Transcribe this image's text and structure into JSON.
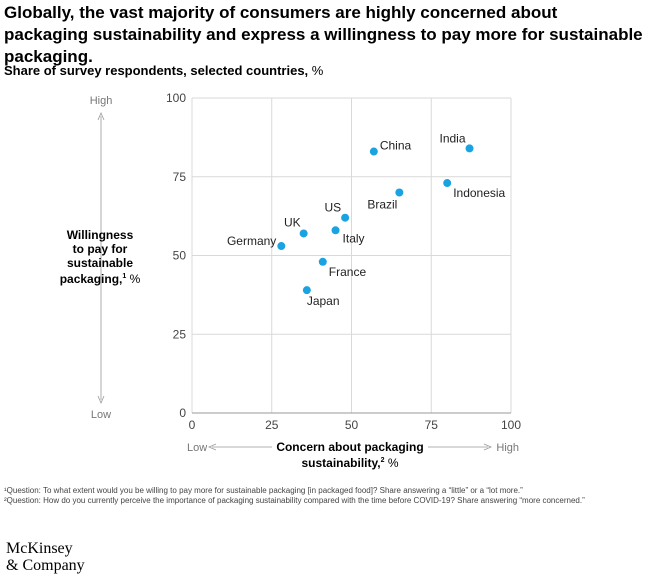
{
  "title": "Globally, the vast majority of consumers are highly concerned about packaging sustainability and express a willingness to pay more for sustainable packaging.",
  "subtitle": "Share of survey respondents, selected countries,",
  "subtitle_unit": "%",
  "colors": {
    "point": "#1aa3e0",
    "grid": "#d9d9d9",
    "axis_end": "#999999"
  },
  "chart_data": {
    "type": "scatter",
    "title": "Share of survey respondents, selected countries, %",
    "xlabel": "Concern about packaging sustainability, %",
    "ylabel": "Willingness to pay for sustainable packaging, %",
    "xlim": [
      0,
      100
    ],
    "ylim": [
      0,
      100
    ],
    "xticks": [
      "0",
      "25",
      "50",
      "75",
      "100"
    ],
    "yticks": [
      "0",
      "25",
      "50",
      "75",
      "100"
    ],
    "grid": true,
    "x_end_labels": {
      "low": "Low",
      "high": "High"
    },
    "y_end_labels": {
      "low": "Low",
      "high": "High"
    },
    "points": [
      {
        "label": "China",
        "x": 57,
        "y": 83
      },
      {
        "label": "India",
        "x": 87,
        "y": 84
      },
      {
        "label": "Indonesia",
        "x": 80,
        "y": 73
      },
      {
        "label": "Brazil",
        "x": 65,
        "y": 70
      },
      {
        "label": "US",
        "x": 48,
        "y": 62
      },
      {
        "label": "UK",
        "x": 35,
        "y": 57
      },
      {
        "label": "Italy",
        "x": 45,
        "y": 58
      },
      {
        "label": "Germany",
        "x": 28,
        "y": 53
      },
      {
        "label": "France",
        "x": 41,
        "y": 48
      },
      {
        "label": "Japan",
        "x": 36,
        "y": 39
      }
    ]
  },
  "ylabel_lines": [
    "Willingness",
    "to pay for",
    "sustainable",
    "packaging,"
  ],
  "ylabel_sup": "1",
  "ylabel_unit": " %",
  "xlabel_lines": [
    "Concern about packaging",
    "sustainability,"
  ],
  "xlabel_sup": "2",
  "xlabel_unit": " %",
  "footnotes": [
    "¹Question: To what extent would you be willing to pay more for sustainable packaging [in packaged food]? Share answering a “little” or a “lot more.”",
    "²Question: How do you currently perceive the importance of packaging sustainability compared with the time before COVID-19? Share answering “more concerned.”"
  ],
  "logo": [
    "McKinsey",
    "& Company"
  ]
}
